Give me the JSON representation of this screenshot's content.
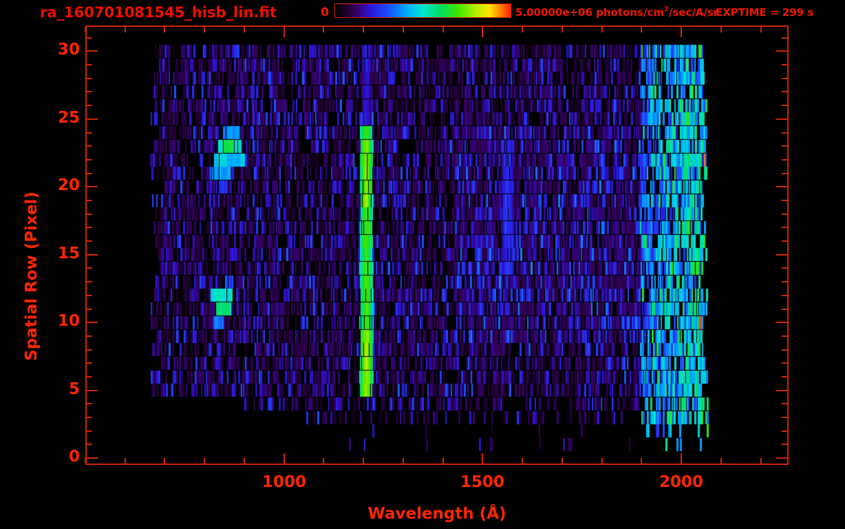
{
  "window": {
    "background": "#000000",
    "frame_color": "#d42400",
    "text_color": "#f21500",
    "axis_text_color": "#ff2600"
  },
  "header": {
    "filename": "ra_160701081545_hisb_lin.fit",
    "exptime_label": "EXPTIME = 299 s"
  },
  "colorbar": {
    "min_label": "0",
    "max_label_pre": "5.00000e+06 photons/cm",
    "max_label_sup": "2",
    "max_label_post": "/sec/A/sr",
    "stops": [
      [
        0.0,
        "#000000"
      ],
      [
        0.05,
        "#16001f"
      ],
      [
        0.12,
        "#340061"
      ],
      [
        0.2,
        "#2b14d8"
      ],
      [
        0.3,
        "#1e4bff"
      ],
      [
        0.4,
        "#00a6ff"
      ],
      [
        0.5,
        "#00e6cf"
      ],
      [
        0.6,
        "#00dd66"
      ],
      [
        0.7,
        "#3ce600"
      ],
      [
        0.8,
        "#b4f000"
      ],
      [
        0.88,
        "#ffe400"
      ],
      [
        0.94,
        "#ff8400"
      ],
      [
        1.0,
        "#ff2000"
      ]
    ]
  },
  "chart_data": {
    "type": "heatmap",
    "title": "ra_160701081545_hisb_lin.fit",
    "xlabel": "Wavelength (Å)",
    "ylabel": "Spatial Row (Pixel)",
    "x_range": [
      500,
      2270
    ],
    "y_range": [
      -0.5,
      31.9
    ],
    "x_major_ticks": [
      1000,
      1500,
      2000
    ],
    "x_minor_step": 100,
    "y_major_ticks": [
      0,
      5,
      10,
      15,
      20,
      25,
      30
    ],
    "y_minor_step": 1,
    "colorbar_min": 0,
    "colorbar_max": 5000000,
    "colorbar_units": "photons/cm2/sec/A/sr",
    "exposure_seconds": 299,
    "data_wl_extent_A": [
      668,
      2066
    ],
    "data_row_extent": [
      0,
      30
    ],
    "features_summary": [
      "bright green emission column (Lyman-alpha ~1208 A) spanning rows 5-24, strongest rows 5-9 and 19-23",
      "cyan-blue diagonal airglow streak rows 20-24 near 815-900 A",
      "secondary bright blue patch rows 10-12 near 820-870 A",
      "faint blue column near 1560 A rows 14-23",
      "noisy bright green detector edge region 1895-2066 A with sparse red strips beyond 2040 A",
      "rows 0-4 mostly empty with sparse purple strips"
    ]
  },
  "heatmap": {
    "seed": 987611,
    "strip_A": 4.6,
    "wl_data": [
      668,
      2066
    ],
    "rows": [
      0,
      30
    ],
    "bg": {
      "black_p": 0.3,
      "mid_boost_wl": 1430,
      "mid_boost_rows": [
        9,
        24
      ],
      "mid_boost": 0.05,
      "green_zone_wl": 1895,
      "red_edge_wl": 2040,
      "red_p": 0.04
    },
    "row_overrides": {
      "0": {
        "density": 0.02,
        "wl": [
          1150,
          1420
        ]
      },
      "1": {
        "density": 0.06,
        "wl": [
          1150,
          2060
        ]
      },
      "2": {
        "density": 0.1,
        "wl": [
          1190,
          2066
        ]
      },
      "3": {
        "density": 0.38,
        "wl": [
          1020,
          2066
        ]
      },
      "4": {
        "density": 0.65,
        "wl": [
          900,
          2066
        ]
      }
    },
    "features": [
      {
        "kind": "column",
        "name": "lyman-alpha-line",
        "wl": [
          1191,
          1224
        ],
        "rows": [
          5,
          24
        ],
        "core": 0.72,
        "edge": 0.42,
        "row_boost": [
          [
            5,
            9,
            0.07
          ],
          [
            19,
            23,
            0.05
          ]
        ]
      },
      {
        "kind": "column",
        "name": "faint-line-upper-rows",
        "wl": [
          1196,
          1220
        ],
        "rows": [
          25,
          30
        ],
        "core": 0.22,
        "edge": 0.1,
        "row_boost": []
      },
      {
        "kind": "column",
        "name": "faint-band-1560",
        "wl": [
          1548,
          1580
        ],
        "rows": [
          14,
          23
        ],
        "core": 0.26,
        "edge": 0.14,
        "row_boost": []
      },
      {
        "kind": "cells",
        "name": "diagonal-airglow-streak",
        "cells": [
          [
            24,
            850,
            887,
            0.36
          ],
          [
            23,
            835,
            893,
            0.5
          ],
          [
            23,
            851,
            869,
            0.64
          ],
          [
            22,
            827,
            901,
            0.44
          ],
          [
            21,
            816,
            863,
            0.4
          ],
          [
            20,
            838,
            857,
            0.24
          ],
          [
            13,
            855,
            873,
            0.28
          ],
          [
            12,
            817,
            869,
            0.5
          ],
          [
            11,
            832,
            864,
            0.58
          ],
          [
            10,
            825,
            845,
            0.34
          ],
          [
            1,
            1195,
            1204,
            0.22
          ],
          [
            1,
            1219,
            1227,
            0.18
          ],
          [
            0,
            1341,
            1349,
            0.12
          ]
        ]
      }
    ]
  }
}
